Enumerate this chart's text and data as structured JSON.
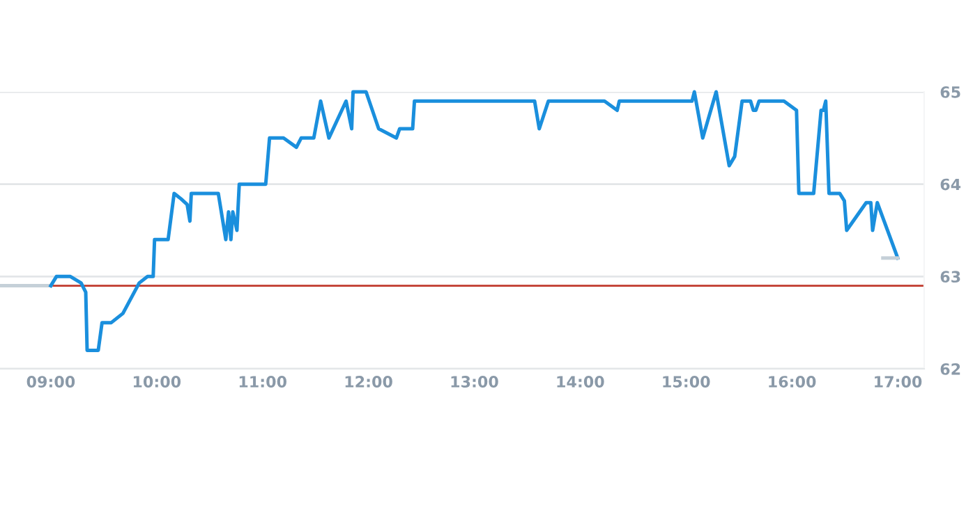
{
  "chart_data": {
    "type": "line",
    "xlim": [
      8.52,
      17.25
    ],
    "ylim": [
      62,
      65
    ],
    "xticks": [
      {
        "value": 9,
        "label": "09:00"
      },
      {
        "value": 10,
        "label": "10:00"
      },
      {
        "value": 11,
        "label": "11:00"
      },
      {
        "value": 12,
        "label": "12:00"
      },
      {
        "value": 13,
        "label": "13:00"
      },
      {
        "value": 14,
        "label": "14:00"
      },
      {
        "value": 15,
        "label": "15:00"
      },
      {
        "value": 16,
        "label": "16:00"
      },
      {
        "value": 17,
        "label": "17:00"
      }
    ],
    "yticks": [
      62,
      63,
      64,
      65
    ],
    "grid": "y",
    "ref_lines": [
      {
        "axis": "y",
        "value": 62.9,
        "color": "#c0392b"
      }
    ],
    "series": [
      {
        "color": "#c5d0d8",
        "x": [
          8.52,
          9.0
        ],
        "values": [
          62.9,
          62.9
        ]
      },
      {
        "color": "#1a8fdd",
        "x": [
          9.0,
          9.053,
          9.185,
          9.286,
          9.33,
          9.343,
          9.448,
          9.484,
          9.571,
          9.681,
          9.835,
          9.914,
          9.967,
          9.98,
          10.108,
          10.165,
          10.231,
          10.288,
          10.314,
          10.327,
          10.582,
          10.653,
          10.679,
          10.701,
          10.719,
          10.758,
          10.78,
          11.03,
          11.066,
          11.198,
          11.32,
          11.365,
          11.484,
          11.549,
          11.627,
          11.789,
          11.842,
          11.855,
          11.978,
          12.097,
          12.264,
          12.295,
          12.418,
          12.435,
          13.57,
          13.614,
          13.7,
          14.23,
          14.35,
          14.37,
          15.057,
          15.079,
          15.158,
          15.285,
          15.408,
          15.46,
          15.53,
          15.61,
          15.636,
          15.66,
          15.69,
          15.925,
          16.044,
          16.066,
          16.206,
          16.276,
          16.298,
          16.32,
          16.351,
          16.452,
          16.496,
          16.518,
          16.702,
          16.746,
          16.763,
          16.807,
          17.0
        ],
        "values": [
          62.9,
          63.0,
          63.0,
          62.93,
          62.83,
          62.2,
          62.2,
          62.5,
          62.5,
          62.6,
          62.93,
          63.0,
          63.0,
          63.4,
          63.4,
          63.9,
          63.84,
          63.78,
          63.6,
          63.9,
          63.9,
          63.4,
          63.7,
          63.4,
          63.7,
          63.5,
          64.0,
          64.0,
          64.5,
          64.5,
          64.4,
          64.5,
          64.5,
          64.9,
          64.5,
          64.9,
          64.6,
          65.0,
          65.0,
          64.6,
          64.5,
          64.6,
          64.6,
          64.9,
          64.9,
          64.6,
          64.9,
          64.9,
          64.8,
          64.9,
          64.9,
          65.0,
          64.5,
          65.0,
          64.2,
          64.3,
          64.9,
          64.9,
          64.8,
          64.8,
          64.9,
          64.9,
          64.8,
          63.9,
          63.9,
          64.8,
          64.8,
          64.9,
          63.9,
          63.9,
          63.82,
          63.5,
          63.8,
          63.8,
          63.5,
          63.8,
          63.2
        ]
      },
      {
        "color": "#c5d0d8",
        "x": [
          16.86,
          17.0
        ],
        "values": [
          63.2,
          63.2
        ]
      }
    ]
  }
}
